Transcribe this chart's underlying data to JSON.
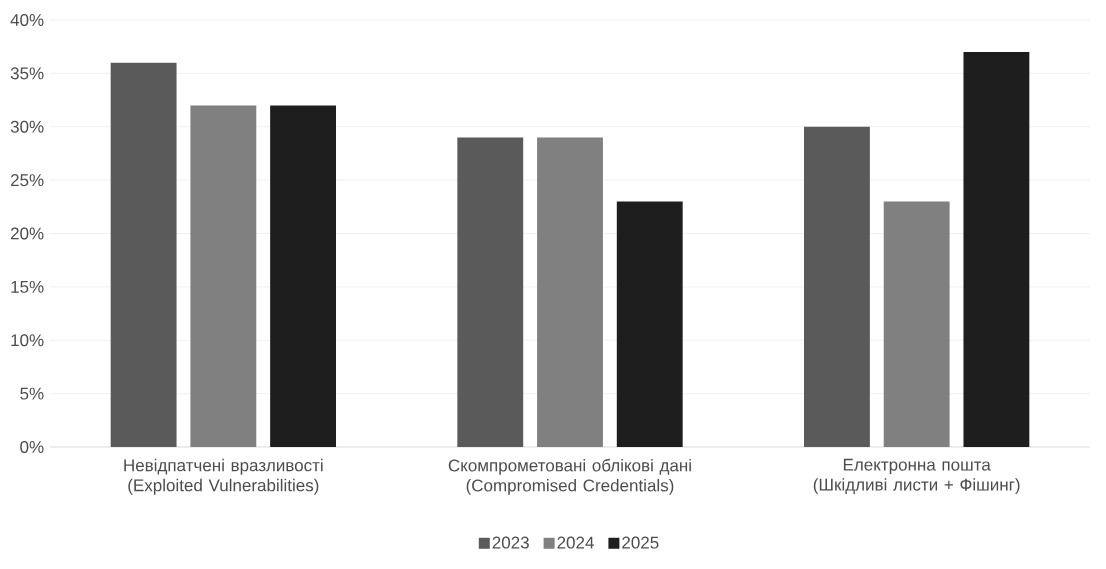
{
  "chart_data": {
    "type": "bar",
    "categories": [
      "Невідпатчені вразливості (Exploited Vulnerabilities)",
      "Скомпрометовані облікові дані (Compromised Credentials)",
      "Електронна пошта (Шкідливі листи + Фішинг)"
    ],
    "series": [
      {
        "name": "2023",
        "color": "#5a5a5a",
        "values": [
          0.36,
          0.29,
          0.3
        ]
      },
      {
        "name": "2024",
        "color": "#808080",
        "values": [
          0.32,
          0.29,
          0.23
        ]
      },
      {
        "name": "2025",
        "color": "#1e1e1e",
        "values": [
          0.32,
          0.23,
          0.37
        ]
      }
    ],
    "ylim": [
      0,
      0.4
    ],
    "yticks": [
      {
        "value": 0,
        "label": "0%"
      },
      {
        "value": 0.05,
        "label": "5%"
      },
      {
        "value": 0.1,
        "label": "10%"
      },
      {
        "value": 0.15,
        "label": "15%"
      },
      {
        "value": 0.2,
        "label": "20%"
      },
      {
        "value": 0.25,
        "label": "25%"
      },
      {
        "value": 0.3,
        "label": "30%"
      },
      {
        "value": 0.35,
        "label": "35%"
      },
      {
        "value": 0.4,
        "label": "40%"
      }
    ],
    "grid": "y",
    "legend": "bottom"
  }
}
